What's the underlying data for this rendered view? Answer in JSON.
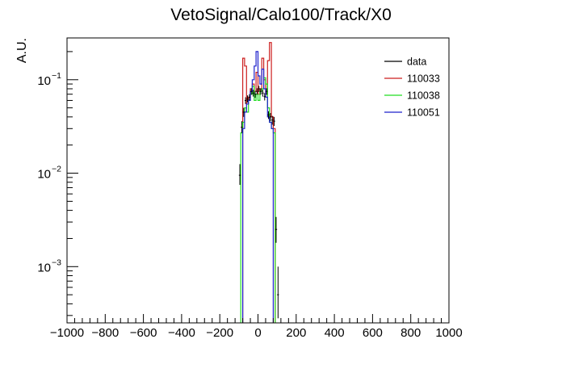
{
  "chart_data": {
    "type": "histogram",
    "title": "VetoSignal/Calo100/Track/X0",
    "xlabel": "",
    "ylabel": "A.U.",
    "xlim": [
      -1000,
      1000
    ],
    "ylim": [
      0.00025,
      0.28
    ],
    "yscale": "log",
    "x_ticks": [
      -1000,
      -800,
      -600,
      -400,
      -200,
      0,
      200,
      400,
      600,
      800,
      1000
    ],
    "x_tick_labels": [
      "−1000",
      "−800",
      "−600",
      "−400",
      "−200",
      "0",
      "200",
      "400",
      "600",
      "800",
      "1000"
    ],
    "y_ticks": [
      0.001,
      0.01,
      0.1
    ],
    "y_tick_labels": [
      {
        "base": "10",
        "exp": "−3"
      },
      {
        "base": "10",
        "exp": "−2"
      },
      {
        "base": "10",
        "exp": "−1"
      }
    ],
    "bin_width": 10,
    "legend_position": "top-right",
    "legend": [
      "data",
      "110033",
      "110038",
      "110051"
    ],
    "colors": {
      "data": "#000000",
      "110033": "#cc1f1f",
      "110038": "#22dd22",
      "110051": "#1f22cc"
    },
    "series": [
      {
        "name": "110033",
        "type": "step",
        "bins": [
          {
            "x": -80,
            "y": 0.17
          },
          {
            "x": -70,
            "y": 0.14
          },
          {
            "x": -60,
            "y": 0.055
          },
          {
            "x": -50,
            "y": 0.065
          },
          {
            "x": -40,
            "y": 0.08
          },
          {
            "x": -30,
            "y": 0.09
          },
          {
            "x": -20,
            "y": 0.075
          },
          {
            "x": -10,
            "y": 0.12
          },
          {
            "x": 0,
            "y": 0.07
          },
          {
            "x": 10,
            "y": 0.08
          },
          {
            "x": 20,
            "y": 0.17
          },
          {
            "x": 30,
            "y": 0.1
          },
          {
            "x": 40,
            "y": 0.07
          },
          {
            "x": 50,
            "y": 0.16
          },
          {
            "x": 60,
            "y": 0.25
          },
          {
            "x": 70,
            "y": 0.04
          },
          {
            "x": 80,
            "y": 0.03
          }
        ]
      },
      {
        "name": "110038",
        "type": "step",
        "bins": [
          {
            "x": -90,
            "y": 0.027
          },
          {
            "x": -80,
            "y": 0.035
          },
          {
            "x": -70,
            "y": 0.05
          },
          {
            "x": -60,
            "y": 0.045
          },
          {
            "x": -50,
            "y": 0.06
          },
          {
            "x": -40,
            "y": 0.07
          },
          {
            "x": -30,
            "y": 0.085
          },
          {
            "x": -20,
            "y": 0.06
          },
          {
            "x": -10,
            "y": 0.07
          },
          {
            "x": 0,
            "y": 0.06
          },
          {
            "x": 10,
            "y": 0.075
          },
          {
            "x": 20,
            "y": 0.08
          },
          {
            "x": 30,
            "y": 0.105
          },
          {
            "x": 40,
            "y": 0.09
          },
          {
            "x": 50,
            "y": 0.05
          },
          {
            "x": 60,
            "y": 0.035
          },
          {
            "x": 70,
            "y": 0.03
          },
          {
            "x": 80,
            "y": 0.027
          }
        ]
      },
      {
        "name": "110051",
        "type": "step",
        "bins": [
          {
            "x": -80,
            "y": 0.03
          },
          {
            "x": -70,
            "y": 0.045
          },
          {
            "x": -60,
            "y": 0.055
          },
          {
            "x": -50,
            "y": 0.06
          },
          {
            "x": -40,
            "y": 0.075
          },
          {
            "x": -30,
            "y": 0.1
          },
          {
            "x": -20,
            "y": 0.14
          },
          {
            "x": -10,
            "y": 0.2
          },
          {
            "x": 0,
            "y": 0.11
          },
          {
            "x": 10,
            "y": 0.09
          },
          {
            "x": 20,
            "y": 0.13
          },
          {
            "x": 30,
            "y": 0.08
          },
          {
            "x": 40,
            "y": 0.065
          },
          {
            "x": 50,
            "y": 0.04
          },
          {
            "x": 60,
            "y": 0.035
          },
          {
            "x": 70,
            "y": 0.03
          }
        ]
      },
      {
        "name": "data",
        "type": "errorbar",
        "points": [
          {
            "x": -95,
            "y": 0.0095,
            "lo": 0.0075,
            "hi": 0.0125
          },
          {
            "x": -85,
            "y": 0.031,
            "lo": 0.027,
            "hi": 0.036
          },
          {
            "x": -75,
            "y": 0.045,
            "lo": 0.04,
            "hi": 0.05
          },
          {
            "x": -65,
            "y": 0.06,
            "lo": 0.055,
            "hi": 0.065
          },
          {
            "x": -55,
            "y": 0.062,
            "lo": 0.057,
            "hi": 0.068
          },
          {
            "x": -45,
            "y": 0.065,
            "lo": 0.06,
            "hi": 0.07
          },
          {
            "x": -35,
            "y": 0.075,
            "lo": 0.069,
            "hi": 0.081
          },
          {
            "x": -25,
            "y": 0.072,
            "lo": 0.066,
            "hi": 0.078
          },
          {
            "x": -15,
            "y": 0.07,
            "lo": 0.064,
            "hi": 0.076
          },
          {
            "x": -5,
            "y": 0.075,
            "lo": 0.069,
            "hi": 0.081
          },
          {
            "x": 5,
            "y": 0.08,
            "lo": 0.074,
            "hi": 0.086
          },
          {
            "x": 15,
            "y": 0.075,
            "lo": 0.069,
            "hi": 0.081
          },
          {
            "x": 25,
            "y": 0.072,
            "lo": 0.066,
            "hi": 0.078
          },
          {
            "x": 35,
            "y": 0.066,
            "lo": 0.06,
            "hi": 0.072
          },
          {
            "x": 45,
            "y": 0.075,
            "lo": 0.069,
            "hi": 0.081
          },
          {
            "x": 55,
            "y": 0.042,
            "lo": 0.038,
            "hi": 0.046
          },
          {
            "x": 65,
            "y": 0.04,
            "lo": 0.036,
            "hi": 0.044
          },
          {
            "x": 75,
            "y": 0.037,
            "lo": 0.033,
            "hi": 0.041
          },
          {
            "x": 85,
            "y": 0.036,
            "lo": 0.032,
            "hi": 0.04
          },
          {
            "x": 95,
            "y": 0.0025,
            "lo": 0.0018,
            "hi": 0.0034
          },
          {
            "x": 105,
            "y": 0.0005,
            "lo": 0.00028,
            "hi": 0.001
          }
        ]
      }
    ]
  }
}
